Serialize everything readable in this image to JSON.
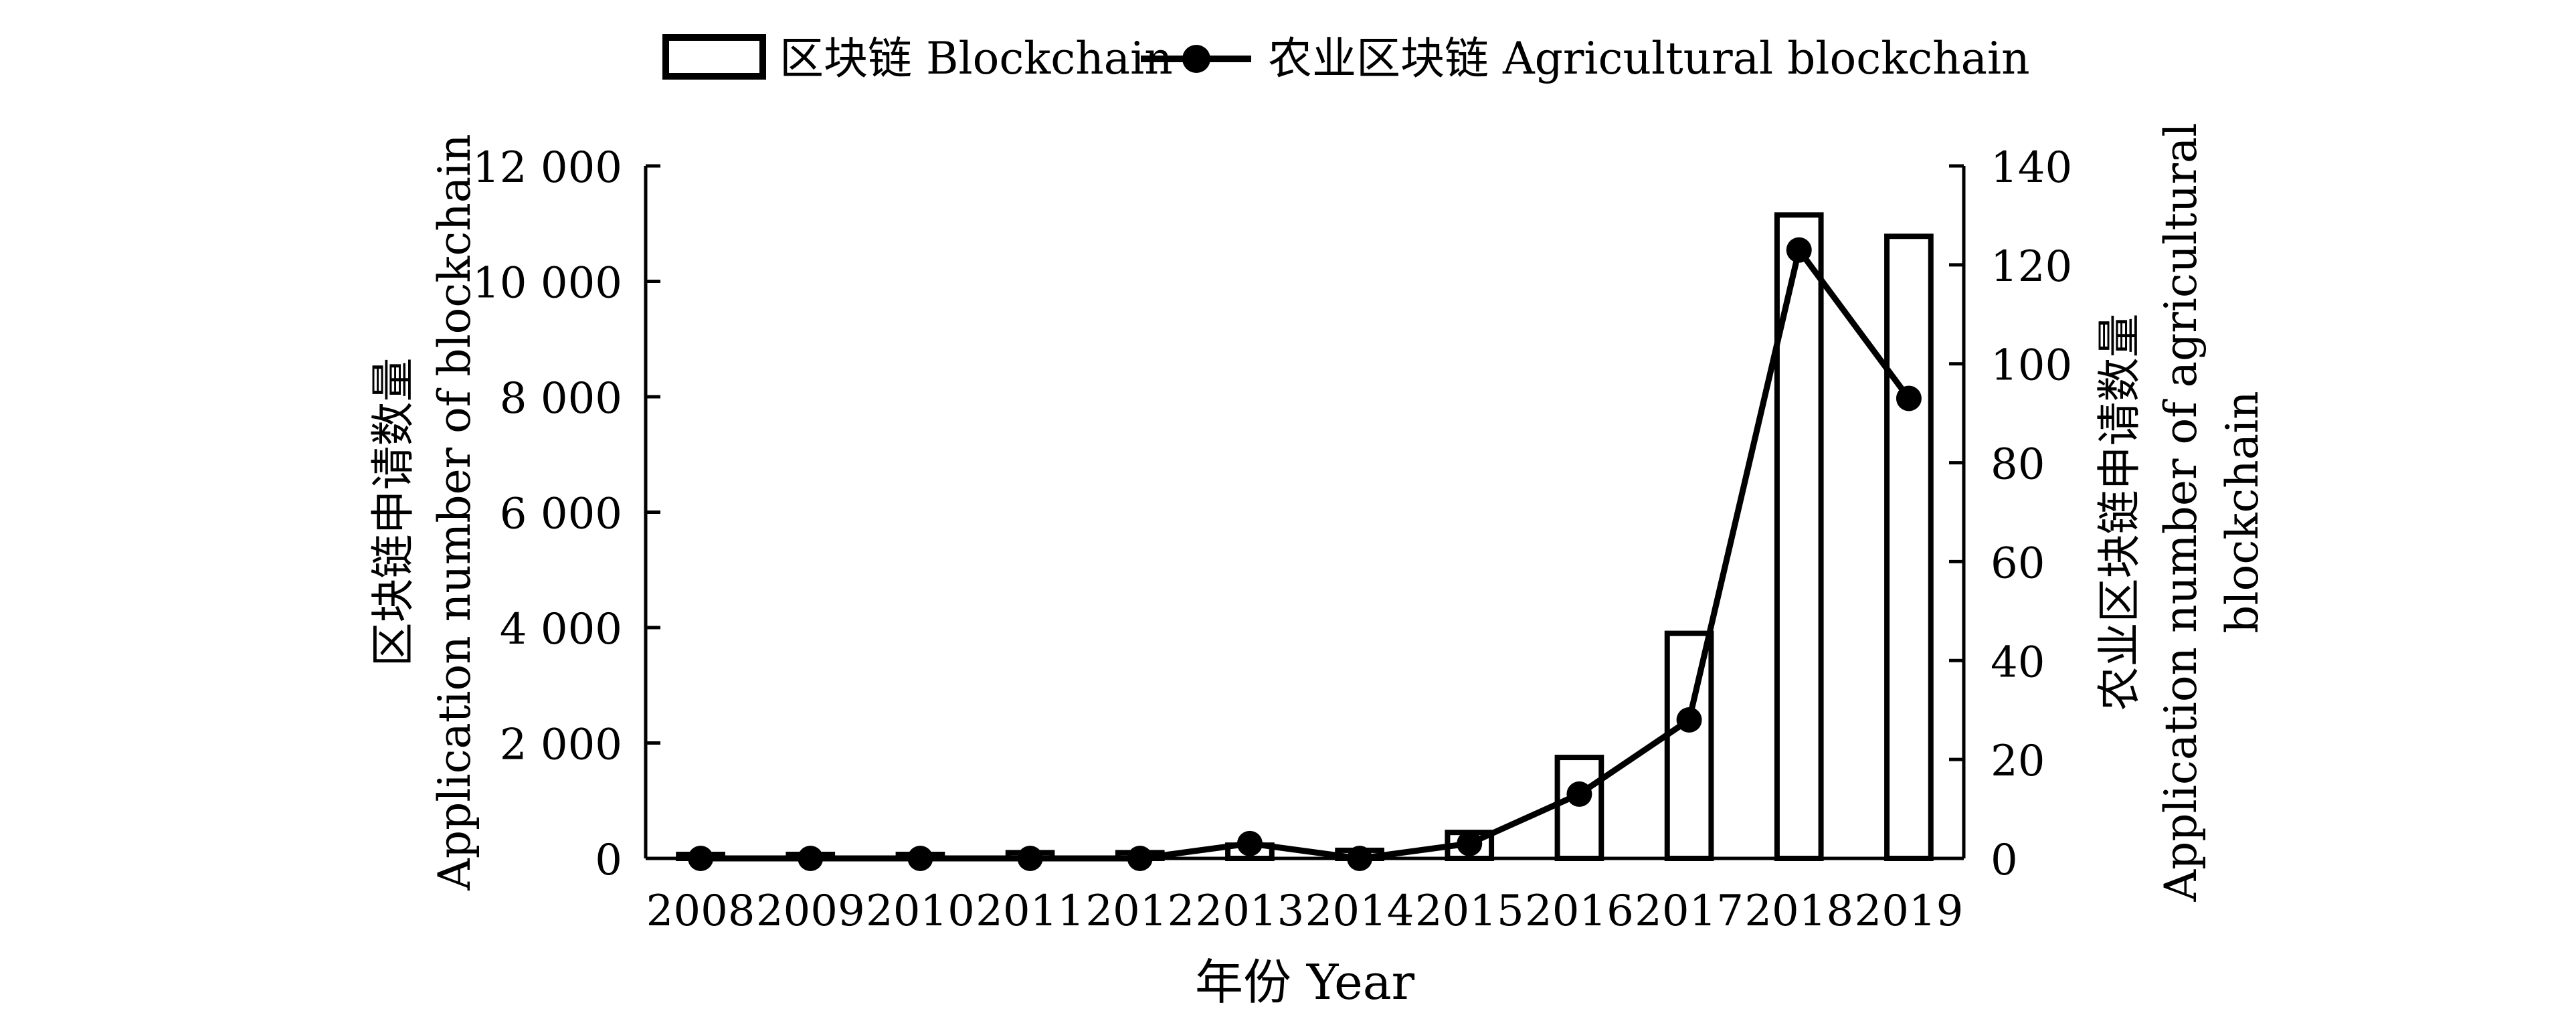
{
  "chart_data": {
    "type": "bar",
    "categories": [
      "2008",
      "2009",
      "2010",
      "2011",
      "2012",
      "2013",
      "2014",
      "2015",
      "2016",
      "2017",
      "2018",
      "2019"
    ],
    "series": [
      {
        "name": "区块链 Blockchain",
        "kind": "bar",
        "axis": "left",
        "values": [
          30,
          40,
          40,
          100,
          100,
          230,
          140,
          450,
          1750,
          3900,
          11150,
          10780
        ]
      },
      {
        "name": "农业区块链 Agricultural blockchain",
        "kind": "line",
        "axis": "right",
        "values": [
          0,
          0,
          0,
          0,
          0,
          3,
          0,
          3,
          13,
          28,
          123,
          93
        ]
      }
    ],
    "xlabel": "年份 Year",
    "ylabel_left": [
      "区块链申请数量",
      "Application number of blockchain"
    ],
    "ylabel_right": [
      "农业区块链申请数量",
      "Application number of agricultural",
      "blockchain"
    ],
    "ylim_left": [
      0,
      12000
    ],
    "ylim_right": [
      0,
      140
    ],
    "yticks_left": [
      0,
      2000,
      4000,
      6000,
      8000,
      10000,
      12000
    ],
    "ytick_labels_left": [
      "0",
      "2 000",
      "4 000",
      "6 000",
      "8 000",
      "10 000",
      "12 000"
    ],
    "yticks_right": [
      0,
      20,
      40,
      60,
      80,
      100,
      120,
      140
    ],
    "ytick_labels_right": [
      "0",
      "20",
      "40",
      "60",
      "80",
      "100",
      "120",
      "140"
    ],
    "legend_placement": "top-center",
    "grid": false,
    "colors": {
      "bar_fill": "#ffffff",
      "bar_stroke": "#000000",
      "line": "#000000",
      "marker": "#000000"
    }
  }
}
